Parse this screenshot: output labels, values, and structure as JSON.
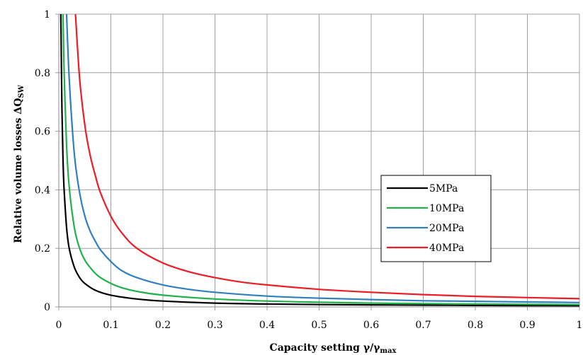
{
  "chart_data": {
    "type": "line",
    "title": "",
    "xlabel": "Capacity setting γ/γ",
    "xlabel_sub": "max",
    "ylabel": "Relative volume losses  ΔQ",
    "ylabel_sub": "SW",
    "xlim": [
      0,
      1
    ],
    "ylim": [
      0,
      1
    ],
    "xticks": [
      0,
      0.1,
      0.2,
      0.3,
      0.4,
      0.5,
      0.6,
      0.7,
      0.8,
      0.9,
      1
    ],
    "xtick_labels": [
      "0",
      "0.1",
      "0.2",
      "0.3",
      "0.4",
      "0.5",
      "0.6",
      "0.7",
      "0.8",
      "0.9",
      "1"
    ],
    "yticks": [
      0,
      0.2,
      0.4,
      0.6,
      0.8,
      1
    ],
    "ytick_labels": [
      "0",
      "0.2",
      "0.4",
      "0.6",
      "0.8",
      "1"
    ],
    "grid": true,
    "legend_position": "center-right",
    "series": [
      {
        "name": "5MPa",
        "color": "#000000",
        "x": [
          0.004,
          0.006,
          0.008,
          0.01,
          0.015,
          0.02,
          0.03,
          0.04,
          0.05,
          0.07,
          0.1,
          0.15,
          0.2,
          0.3,
          0.4,
          0.5,
          0.6,
          0.7,
          0.8,
          0.9,
          1.0
        ],
        "y": [
          1.0,
          0.68,
          0.51,
          0.41,
          0.27,
          0.2,
          0.135,
          0.1,
          0.08,
          0.057,
          0.04,
          0.027,
          0.02,
          0.013,
          0.01,
          0.008,
          0.007,
          0.006,
          0.005,
          0.0045,
          0.004
        ]
      },
      {
        "name": "10MPa",
        "color": "#21b14b",
        "x": [
          0.008,
          0.01,
          0.015,
          0.02,
          0.03,
          0.04,
          0.05,
          0.06,
          0.07,
          0.08,
          0.1,
          0.12,
          0.15,
          0.2,
          0.3,
          0.4,
          0.5,
          0.6,
          0.7,
          0.8,
          0.9,
          1.0
        ],
        "y": [
          1.0,
          0.82,
          0.55,
          0.41,
          0.27,
          0.2,
          0.16,
          0.135,
          0.115,
          0.1,
          0.08,
          0.066,
          0.053,
          0.04,
          0.027,
          0.02,
          0.016,
          0.013,
          0.011,
          0.01,
          0.009,
          0.008
        ]
      },
      {
        "name": "20MPa",
        "color": "#2f7fc1",
        "x": [
          0.015,
          0.02,
          0.03,
          0.04,
          0.05,
          0.06,
          0.07,
          0.08,
          0.1,
          0.12,
          0.15,
          0.2,
          0.25,
          0.3,
          0.4,
          0.5,
          0.6,
          0.7,
          0.8,
          0.9,
          1.0
        ],
        "y": [
          1.0,
          0.78,
          0.52,
          0.39,
          0.31,
          0.26,
          0.225,
          0.195,
          0.155,
          0.125,
          0.1,
          0.075,
          0.06,
          0.05,
          0.037,
          0.03,
          0.025,
          0.021,
          0.019,
          0.017,
          0.015
        ]
      },
      {
        "name": "40MPa",
        "color": "#ee1c25",
        "x": [
          0.032,
          0.04,
          0.05,
          0.06,
          0.07,
          0.08,
          0.1,
          0.12,
          0.15,
          0.2,
          0.25,
          0.3,
          0.35,
          0.4,
          0.5,
          0.6,
          0.7,
          0.8,
          0.9,
          1.0
        ],
        "y": [
          1.0,
          0.78,
          0.62,
          0.52,
          0.45,
          0.39,
          0.31,
          0.255,
          0.2,
          0.15,
          0.12,
          0.1,
          0.085,
          0.075,
          0.06,
          0.05,
          0.042,
          0.036,
          0.032,
          0.028
        ]
      }
    ]
  }
}
